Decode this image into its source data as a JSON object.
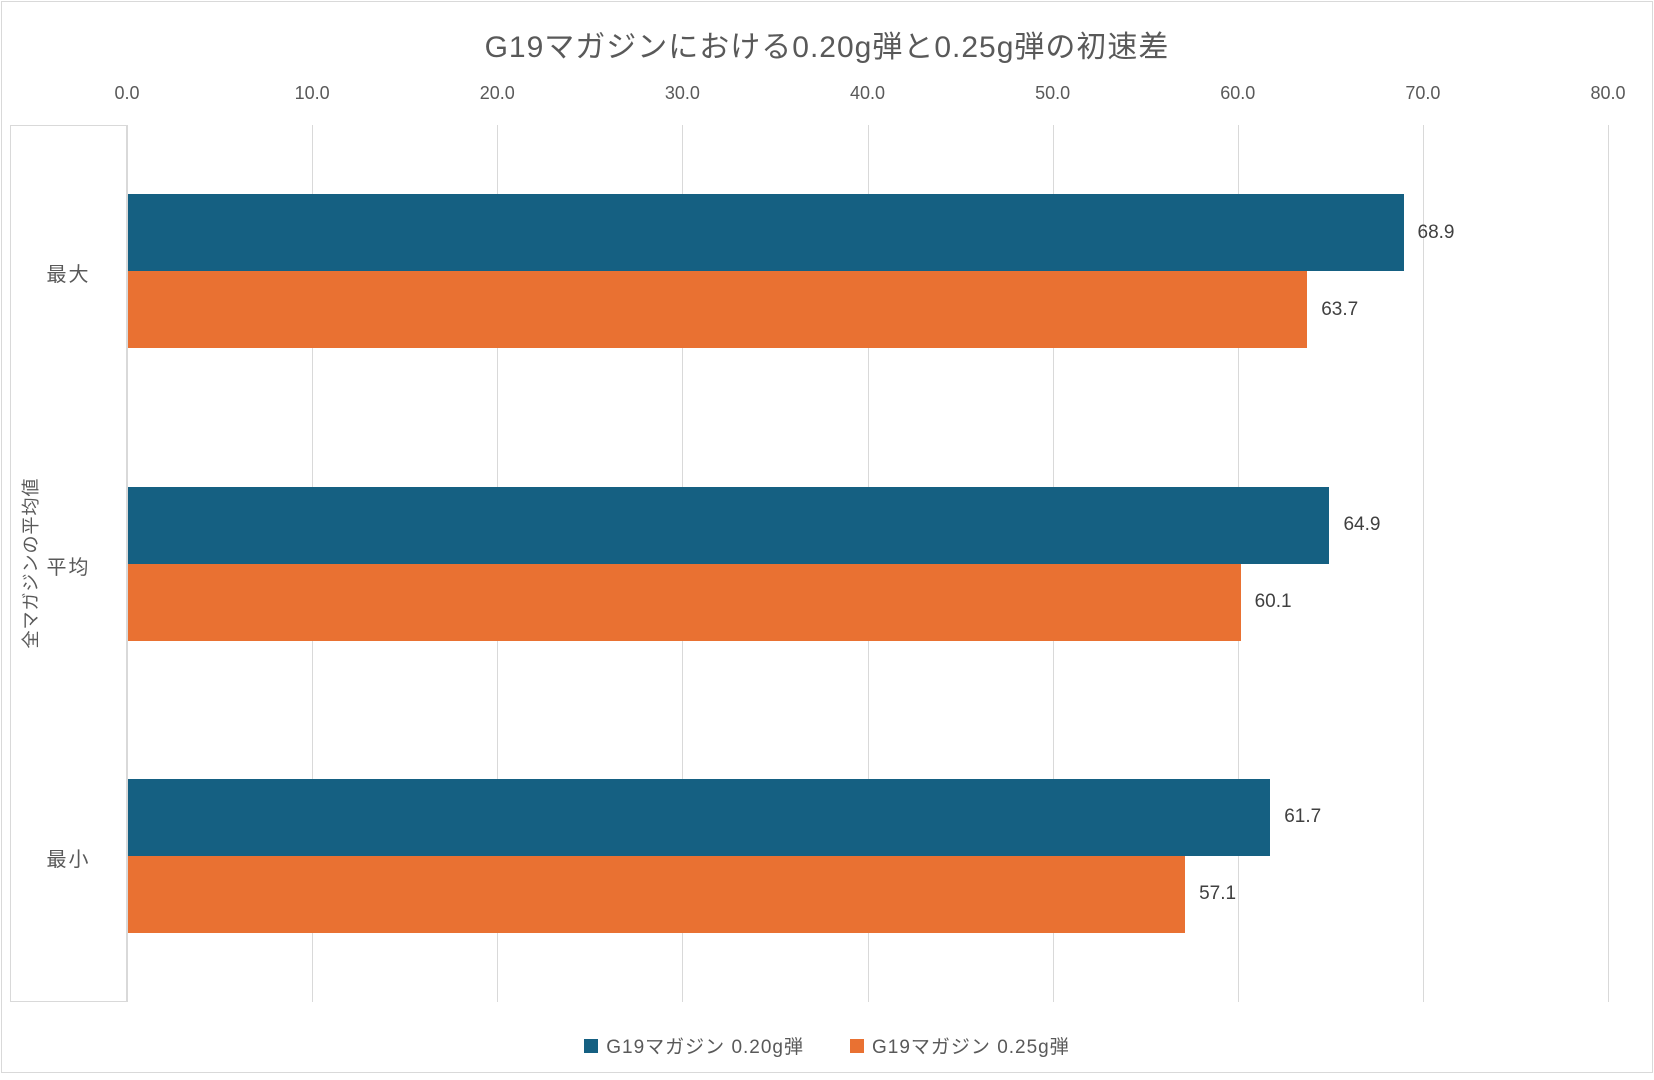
{
  "title": "G19マガジンにおける0.20g弾と0.25g弾の初速差",
  "colors": {
    "series1": "#156082",
    "series2": "#E97132",
    "gridline": "#D9D9D9",
    "axis_text": "#595959",
    "value_label_text": "#404040"
  },
  "chart_data": {
    "type": "bar",
    "orientation": "horizontal",
    "title": "G19マガジンにおける0.20g弾と0.25g弾の初速差",
    "ylabel": "全マガジンの平均値",
    "xlabel": "",
    "categories": [
      "最大",
      "平均",
      "最小"
    ],
    "series": [
      {
        "name": "G19マガジン 0.20g弾",
        "color": "#156082",
        "values": [
          68.9,
          64.9,
          61.7
        ]
      },
      {
        "name": "G19マガジン 0.25g弾",
        "color": "#E97132",
        "values": [
          63.7,
          60.1,
          57.1
        ]
      }
    ],
    "value_labels": [
      [
        "68.9",
        "64.9",
        "61.7"
      ],
      [
        "63.7",
        "60.1",
        "57.1"
      ]
    ],
    "xlim": [
      0,
      80
    ],
    "xticks": [
      "0.0",
      "10.0",
      "20.0",
      "30.0",
      "40.0",
      "50.0",
      "60.0",
      "70.0",
      "80.0"
    ],
    "grid": true,
    "tick_position": "top",
    "legend_position": "bottom"
  }
}
